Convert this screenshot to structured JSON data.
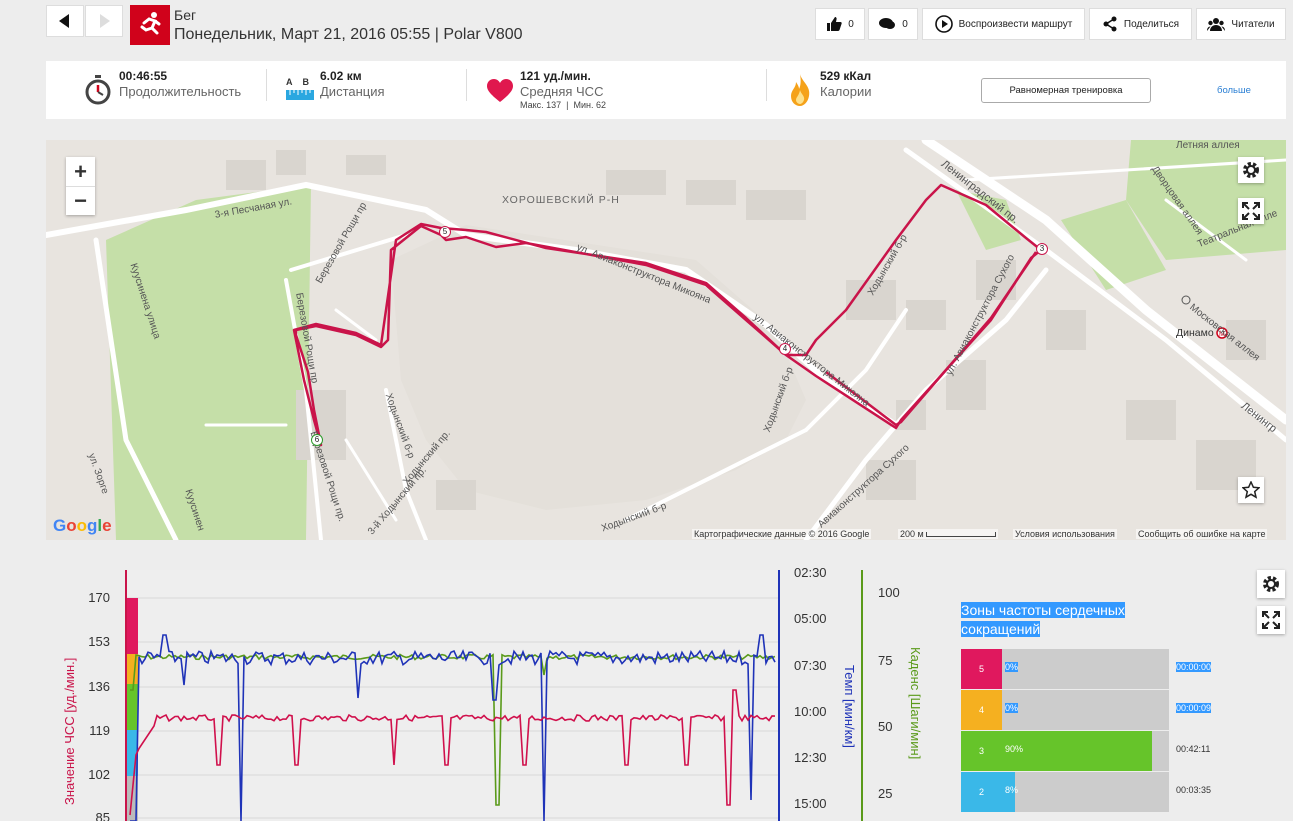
{
  "header": {
    "sport": "Бег",
    "subtitle": "Понедельник, Март 21, 2016 05:55 | Polar V800",
    "likes": "0",
    "comments": "0",
    "replay": "Воспроизвести маршрут",
    "share": "Поделиться",
    "readers": "Читатели"
  },
  "summary": {
    "duration_value": "00:46:55",
    "duration_label": "Продолжительность",
    "distance_a": "A",
    "distance_b": "B",
    "distance_value": "6.02 км",
    "distance_label": "Дистанция",
    "hr_value": "121 уд./мин.",
    "hr_label": "Средняя ЧСС",
    "hr_sub": "Макс. 137  |  Мин. 62",
    "cal_value": "529 кКал",
    "cal_label": "Калории",
    "type_button": "Равномерная тренировка",
    "more": "больше"
  },
  "map": {
    "district": "ХОРОШЕВСКИЙ Р-Н",
    "streets": {
      "peschanaya": "3-я Песчаная ул.",
      "kusinena": "Куусинена улица",
      "kusinen2": "Куусинен",
      "zorge": "ул. Зорге",
      "berez1": "Березовой Рощи пр",
      "berez2": "Березовой Рощи пр",
      "berez3": "Березовой Рощи пр.",
      "mikoyana1": "ул. Авиаконструктора Микояна",
      "mikoyana2": "ул. Авиаконструктора Микояна",
      "khod1": "Ходынский б-р",
      "khod2": "Ходынский б-р",
      "khod3": "Ходынский б-р",
      "khod4": "Ходынский б-р",
      "khod5": "3-й Ходынский пр.",
      "khod6": "Ходынский пр.",
      "sukhogo1": "ул. Авиаконструктора Сухого",
      "sukhogo2": "Авиаконструктора Сухого",
      "leningr1": "Ленинградский пр.",
      "leningr2": "Ленингр",
      "letnyaya": "Летняя аллея",
      "dvortsovaya": "Дворцовая аллея",
      "teatralnaya": "Театральная алле",
      "moskovskaya": "Московская аллея",
      "moskovsk2": "Московс",
      "dinamo": "Динамо"
    },
    "markers": [
      "5",
      "4",
      "3",
      "6"
    ],
    "google": "Google",
    "footer": {
      "data": "Картографические данные © 2016 Google",
      "scale": "200 м",
      "terms": "Условия использования",
      "report": "Сообщить об ошибке на карте"
    }
  },
  "chart_data": {
    "type": "line",
    "y_hr": {
      "label": "Значение ЧСС [уд./мин.]",
      "ticks": [
        "170",
        "153",
        "136",
        "119",
        "102",
        "85"
      ]
    },
    "y_pace": {
      "label": "Темп [мин/км]",
      "ticks": [
        "02:30",
        "05:00",
        "07:30",
        "10:00",
        "12:30",
        "15:00"
      ]
    },
    "y_cadence": {
      "label": "Каденс [Шаги/мин]",
      "ticks": [
        "100",
        "75",
        "50",
        "25"
      ]
    },
    "series": [
      {
        "name": "Значение ЧСС [уд./мин.]",
        "approx_level": 121,
        "color": "#d0104c"
      },
      {
        "name": "Темп [мин/км]",
        "approx_level": "07:30",
        "color": "#1f33b8"
      },
      {
        "name": "Каденс [Шаги/мин]",
        "approx_level": 79,
        "color": "#5a9a1a"
      }
    ]
  },
  "zones": {
    "title_line1": "Зоны частоты сердечных",
    "title_line2": "сокращений",
    "rows": [
      {
        "zone": "5",
        "pct": "0%",
        "time": "00:00:00",
        "fraction": 0.0,
        "color": "#e0185e"
      },
      {
        "zone": "4",
        "pct": "0%",
        "time": "00:00:09",
        "fraction": 0.0,
        "color": "#f5b020"
      },
      {
        "zone": "3",
        "pct": "90%",
        "time": "00:42:11",
        "fraction": 0.9,
        "color": "#66c42a"
      },
      {
        "zone": "2",
        "pct": "8%",
        "time": "00:03:35",
        "fraction": 0.08,
        "color": "#3ab8e8"
      }
    ]
  }
}
